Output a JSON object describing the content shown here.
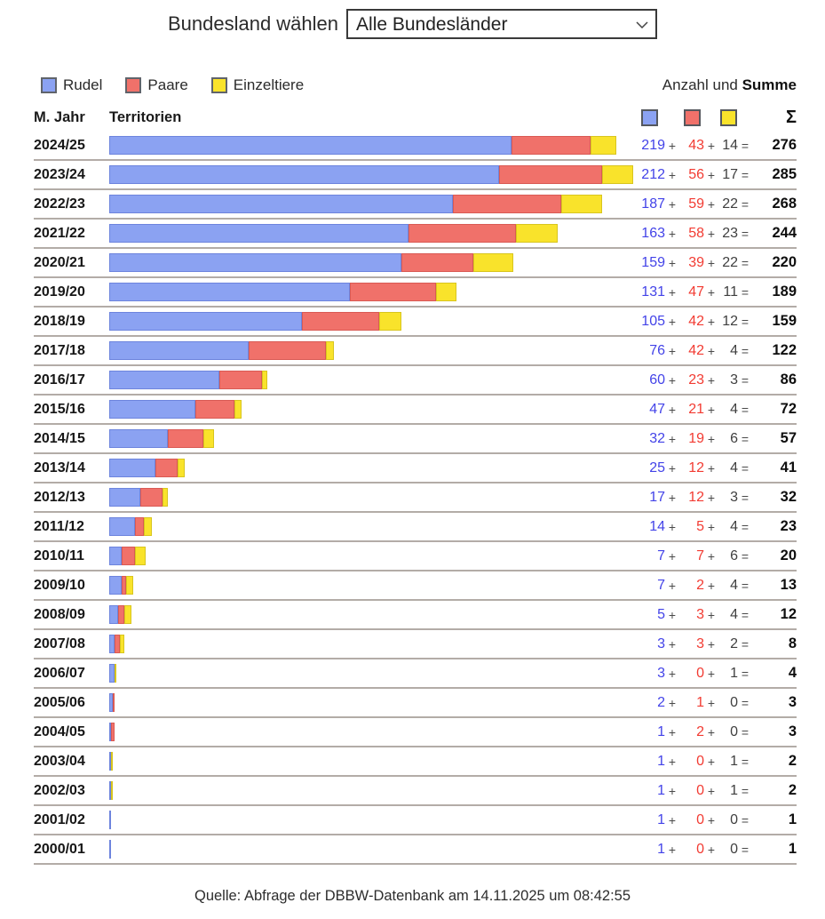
{
  "control": {
    "label": "Bundesland wählen",
    "selected_option": "Alle Bundesländer"
  },
  "legend": {
    "items": [
      {
        "label": "Rudel"
      },
      {
        "label": "Paare"
      },
      {
        "label": "Einzeltiere"
      }
    ],
    "right_prefix": "Anzahl und ",
    "right_bold": "Summe"
  },
  "table_header": {
    "col_year": "M. Jahr",
    "col_territories": "Territorien",
    "sum_symbol": "Σ"
  },
  "row_symbols": {
    "plus": "+",
    "equals": "="
  },
  "colors": {
    "rudel_fill": "#8ba2f2",
    "rudel_border": "#6d84dd",
    "paare_fill": "#f0716a",
    "paare_border": "#d95a54",
    "einzeltiere_fill": "#f9e32b",
    "einzeltiere_border": "#d8c51f",
    "value_rudel_text": "#4343e8",
    "value_paare_text": "#f23b32",
    "value_einzeltiere_text": "#3f3f3f",
    "separator": "#b3aca7"
  },
  "footer": {
    "source": "Quelle: Abfrage der DBBW-Datenbank am 14.11.2025 um 08:42:55"
  },
  "chart_data": {
    "type": "bar",
    "orientation": "horizontal",
    "stacked": true,
    "x_axis_hidden": true,
    "max_total": 285,
    "categories": [
      "2024/25",
      "2023/24",
      "2022/23",
      "2021/22",
      "2020/21",
      "2019/20",
      "2018/19",
      "2017/18",
      "2016/17",
      "2015/16",
      "2014/15",
      "2013/14",
      "2012/13",
      "2011/12",
      "2010/11",
      "2009/10",
      "2008/09",
      "2007/08",
      "2006/07",
      "2005/06",
      "2004/05",
      "2003/04",
      "2002/03",
      "2001/02",
      "2000/01"
    ],
    "series": [
      {
        "name": "Rudel",
        "color": "#8ba2f2",
        "border_color": "#6d84dd",
        "values": [
          219,
          212,
          187,
          163,
          159,
          131,
          105,
          76,
          60,
          47,
          32,
          25,
          17,
          14,
          7,
          7,
          5,
          3,
          3,
          2,
          1,
          1,
          1,
          1,
          1
        ]
      },
      {
        "name": "Paare",
        "color": "#f0716a",
        "border_color": "#d95a54",
        "values": [
          43,
          56,
          59,
          58,
          39,
          47,
          42,
          42,
          23,
          21,
          19,
          12,
          12,
          5,
          7,
          2,
          3,
          3,
          0,
          1,
          2,
          0,
          0,
          0,
          0
        ]
      },
      {
        "name": "Einzeltiere",
        "color": "#f9e32b",
        "border_color": "#d8c51f",
        "values": [
          14,
          17,
          22,
          23,
          22,
          11,
          12,
          4,
          3,
          4,
          6,
          4,
          3,
          4,
          6,
          4,
          4,
          2,
          1,
          0,
          0,
          1,
          1,
          0,
          0
        ]
      }
    ],
    "totals": [
      276,
      285,
      268,
      244,
      220,
      189,
      159,
      122,
      86,
      72,
      57,
      41,
      32,
      23,
      20,
      13,
      12,
      8,
      4,
      3,
      3,
      2,
      2,
      1,
      1
    ]
  }
}
